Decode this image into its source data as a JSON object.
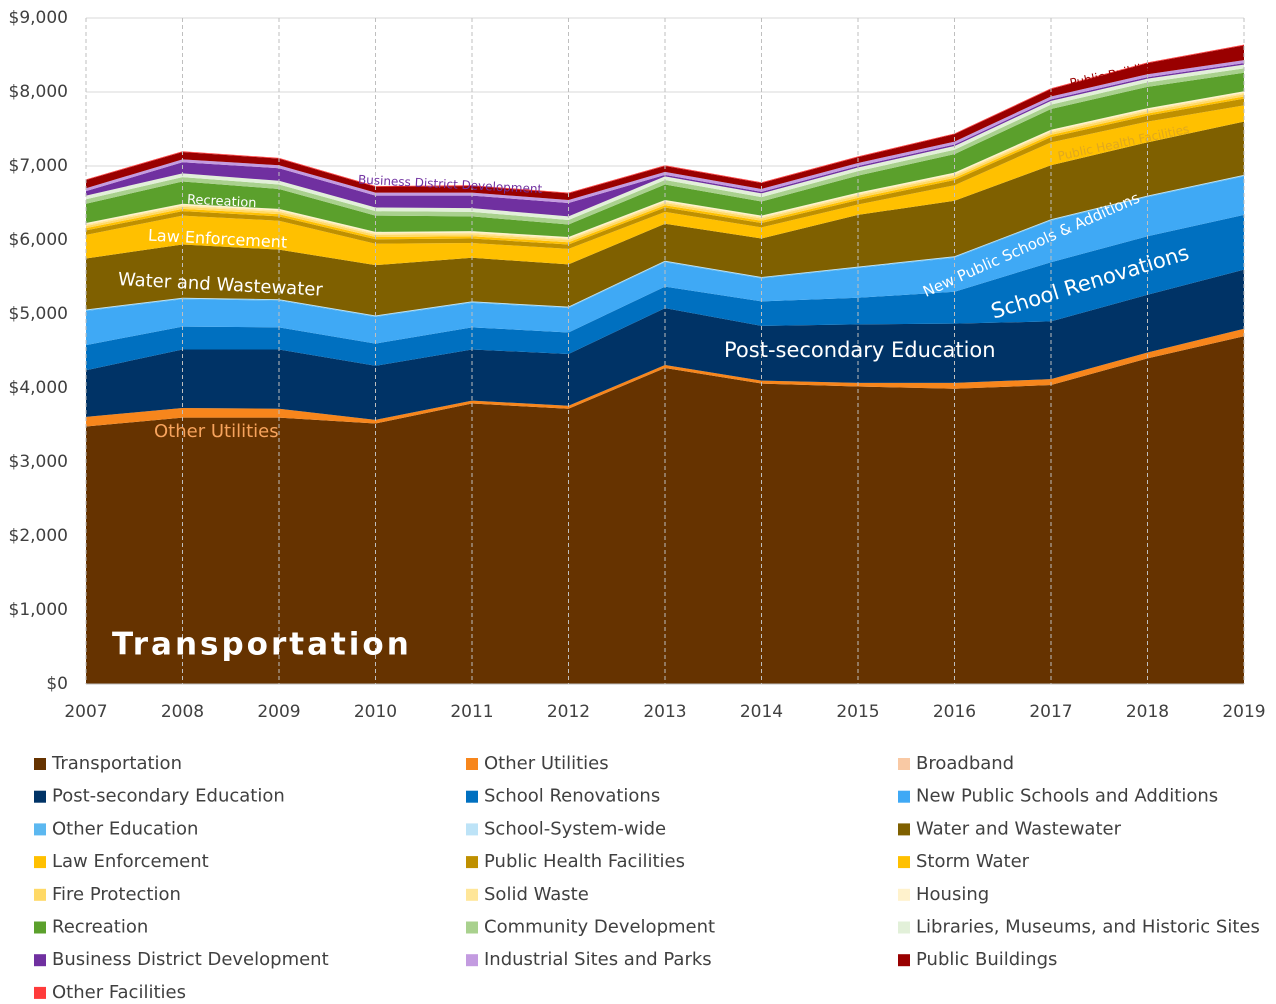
{
  "chart_data": {
    "type": "stacked_area",
    "categories": [
      "2007",
      "2008",
      "2009",
      "2010",
      "2011",
      "2012",
      "2013",
      "2014",
      "2015",
      "2016",
      "2017",
      "2018",
      "2019"
    ],
    "ylim": [
      0,
      9000
    ],
    "yticks": [
      {
        "value": 0,
        "label": "$0"
      },
      {
        "value": 1000,
        "label": "$1,000"
      },
      {
        "value": 2000,
        "label": "$2,000"
      },
      {
        "value": 3000,
        "label": "$3,000"
      },
      {
        "value": 4000,
        "label": "$4,000"
      },
      {
        "value": 5000,
        "label": "$5,000"
      },
      {
        "value": 6000,
        "label": "$6,000"
      },
      {
        "value": 7000,
        "label": "$7,000"
      },
      {
        "value": 8000,
        "label": "$8,000"
      },
      {
        "value": 9000,
        "label": "$9,000"
      }
    ],
    "grid": true,
    "series": [
      {
        "name": "Transportation",
        "color": "#663300",
        "values": [
          3480,
          3600,
          3600,
          3520,
          3790,
          3720,
          4270,
          4060,
          4020,
          3990,
          4040,
          4400,
          4700
        ]
      },
      {
        "name": "Other Utilities",
        "color": "#f7861c",
        "values": [
          130,
          130,
          120,
          50,
          40,
          40,
          40,
          40,
          50,
          80,
          80,
          80,
          100
        ]
      },
      {
        "name": "Broadband",
        "color": "#f9c9a4",
        "values": [
          0,
          0,
          0,
          0,
          0,
          0,
          0,
          0,
          0,
          0,
          0,
          0,
          0
        ]
      },
      {
        "name": "Post-secondary Education",
        "color": "#003366",
        "values": [
          630,
          790,
          800,
          730,
          690,
          700,
          770,
          740,
          790,
          800,
          780,
          780,
          800
        ]
      },
      {
        "name": "School Renovations",
        "color": "#0070c0",
        "values": [
          340,
          310,
          300,
          300,
          300,
          290,
          290,
          330,
          360,
          430,
          800,
          790,
          740
        ]
      },
      {
        "name": "New Public Schools and Additions",
        "color": "#3fa9f5",
        "values": [
          460,
          370,
          360,
          360,
          330,
          330,
          330,
          310,
          400,
          460,
          560,
          530,
          520
        ]
      },
      {
        "name": "Other Education",
        "color": "#5cb8f0",
        "values": [
          10,
          10,
          10,
          10,
          10,
          10,
          10,
          10,
          10,
          10,
          10,
          10,
          10
        ]
      },
      {
        "name": "School-System-wide",
        "color": "#bde3f7",
        "values": [
          10,
          10,
          10,
          10,
          10,
          10,
          10,
          10,
          10,
          10,
          10,
          10,
          10
        ]
      },
      {
        "name": "Water and Wastewater",
        "color": "#7f6000",
        "values": [
          690,
          720,
          670,
          680,
          590,
          570,
          500,
          520,
          700,
          750,
          730,
          720,
          720
        ]
      },
      {
        "name": "Law Enforcement",
        "color": "#ffc000",
        "values": [
          320,
          390,
          390,
          290,
          200,
          210,
          160,
          150,
          140,
          210,
          310,
          280,
          220
        ]
      },
      {
        "name": "Public Health Facilities",
        "color": "#bf9000",
        "values": [
          60,
          60,
          60,
          60,
          60,
          60,
          60,
          60,
          60,
          70,
          70,
          80,
          90
        ]
      },
      {
        "name": "Storm Water",
        "color": "#ffc000",
        "values": [
          30,
          30,
          30,
          30,
          30,
          30,
          30,
          30,
          30,
          30,
          30,
          30,
          30
        ]
      },
      {
        "name": "Fire Protection",
        "color": "#ffd966",
        "values": [
          30,
          30,
          30,
          30,
          30,
          30,
          30,
          30,
          30,
          30,
          30,
          30,
          30
        ]
      },
      {
        "name": "Solid Waste",
        "color": "#ffe699",
        "values": [
          20,
          20,
          20,
          20,
          20,
          20,
          20,
          20,
          20,
          20,
          20,
          20,
          20
        ]
      },
      {
        "name": "Housing",
        "color": "#fff2cc",
        "values": [
          20,
          20,
          20,
          20,
          20,
          20,
          20,
          20,
          20,
          20,
          20,
          20,
          20
        ]
      },
      {
        "name": "Recreation",
        "color": "#5ba02c",
        "values": [
          260,
          300,
          270,
          220,
          200,
          170,
          210,
          190,
          230,
          250,
          280,
          290,
          250
        ]
      },
      {
        "name": "Community Development",
        "color": "#a9d18e",
        "values": [
          60,
          60,
          60,
          60,
          60,
          60,
          60,
          60,
          60,
          60,
          60,
          60,
          60
        ]
      },
      {
        "name": "Libraries, Museums, and Historic Sites",
        "color": "#e2f0d9",
        "values": [
          50,
          50,
          50,
          50,
          50,
          50,
          50,
          50,
          50,
          50,
          50,
          50,
          50
        ]
      },
      {
        "name": "Business District Development",
        "color": "#7030a0",
        "values": [
          60,
          150,
          170,
          160,
          170,
          180,
          20,
          20,
          20,
          20,
          20,
          20,
          20
        ]
      },
      {
        "name": "Industrial Sites and Parks",
        "color": "#c39be0",
        "values": [
          40,
          40,
          40,
          40,
          40,
          40,
          40,
          40,
          40,
          40,
          40,
          40,
          40
        ]
      },
      {
        "name": "Public Buildings",
        "color": "#990000",
        "values": [
          110,
          100,
          90,
          80,
          90,
          90,
          80,
          80,
          80,
          100,
          100,
          150,
          200
        ]
      },
      {
        "name": "Other Facilities",
        "color": "#ff3b3b",
        "values": [
          10,
          10,
          10,
          10,
          10,
          10,
          10,
          10,
          10,
          10,
          10,
          10,
          10
        ]
      }
    ],
    "annotations": [
      {
        "text": "Transportation"
      },
      {
        "text": "Other Utilities"
      },
      {
        "text": "Post-secondary Education"
      },
      {
        "text": "School Renovations"
      },
      {
        "text": "New Public Schools & Additions"
      },
      {
        "text": "Water and Wastewater"
      },
      {
        "text": "Law Enforcement"
      },
      {
        "text": "Recreation"
      },
      {
        "text": "Business District Development"
      },
      {
        "text": "Public Health Facilities"
      },
      {
        "text": "Public Buildings"
      }
    ]
  }
}
